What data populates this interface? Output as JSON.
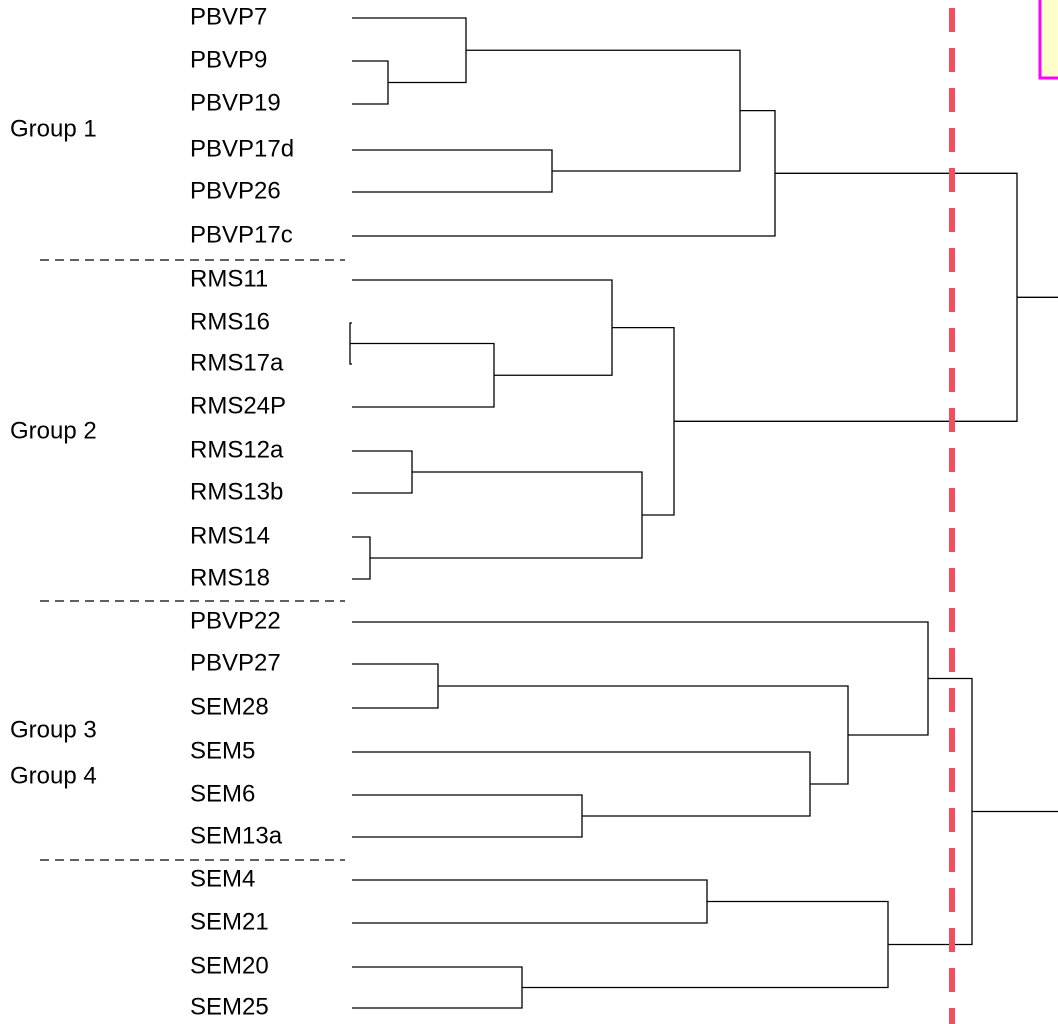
{
  "groups": [
    "Group 1",
    "Group 2",
    "Group 3",
    "Group 4"
  ],
  "leaves": [
    "PBVP7",
    "PBVP9",
    "PBVP19",
    "PBVP17d",
    "PBVP26",
    "PBVP17c",
    "RMS11",
    "RMS16",
    "RMS17a",
    "RMS24P",
    "RMS12a",
    "RMS13b",
    "RMS14",
    "RMS18",
    "PBVP22",
    "PBVP27",
    "SEM28",
    "SEM5",
    "SEM6",
    "SEM13a",
    "SEM4",
    "SEM21",
    "SEM20",
    "SEM25"
  ]
}
